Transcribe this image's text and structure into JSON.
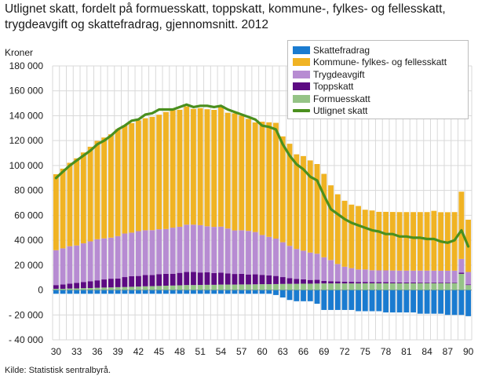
{
  "title_lines": [
    "Utlignet skatt, fordelt på formuesskatt, toppskatt, kommune-, fylkes- og fellesskatt,",
    "trygdeavgift og skattefradrag, gjennomsnitt. 2012"
  ],
  "source": "Kilde: Statistisk sentralbyrå.",
  "colors": {
    "skattefradrag": "#1a7bd0",
    "kommune": "#f0b323",
    "trygdeavgift": "#b78cd2",
    "toppskatt": "#5c0a82",
    "formuesskatt": "#95c386",
    "utlignet": "#4a8f1e",
    "grid": "#d9d9d9"
  },
  "chart_data": {
    "type": "bar",
    "stacked": true,
    "title": "Utlignet skatt, fordelt på formuesskatt, toppskatt, kommune-, fylkes- og fellesskatt, trygdeavgift og skattefradrag, gjennomsnitt. 2012",
    "ylabel": "Kroner",
    "xlabel": "",
    "ylim": [
      -40000,
      180000
    ],
    "yticks": [
      -40000,
      -20000,
      0,
      20000,
      40000,
      60000,
      80000,
      100000,
      120000,
      140000,
      160000,
      180000
    ],
    "ytick_labels": [
      "- 40 000",
      "- 20 000",
      "0",
      "20 000",
      "40 000",
      "60 000",
      "80 000",
      "100 000",
      "120 000",
      "140 000",
      "160 000",
      "180 000"
    ],
    "xtick_labels": [
      "30",
      "33",
      "36",
      "39",
      "42",
      "45",
      "48",
      "51",
      "54",
      "57",
      "60",
      "63",
      "66",
      "69",
      "72",
      "75",
      "78",
      "81",
      "84",
      "87",
      "90"
    ],
    "ages": [
      30,
      31,
      32,
      33,
      34,
      35,
      36,
      37,
      38,
      39,
      40,
      41,
      42,
      43,
      44,
      45,
      46,
      47,
      48,
      49,
      50,
      51,
      52,
      53,
      54,
      55,
      56,
      57,
      58,
      59,
      60,
      61,
      62,
      63,
      64,
      65,
      66,
      67,
      68,
      69,
      70,
      71,
      72,
      73,
      74,
      75,
      76,
      77,
      78,
      79,
      80,
      81,
      82,
      83,
      84,
      85,
      86,
      87,
      88,
      89,
      90
    ],
    "grid": true,
    "legend_position": "top-right",
    "legend": [
      "Skattefradrag",
      "Kommune- fylkes- og fellesskatt",
      "Trygdeavgift",
      "Toppskatt",
      "Formuesskatt",
      "Utlignet skatt"
    ],
    "series": [
      {
        "name": "Skattefradrag",
        "key": "skattefradrag",
        "kind": "bar",
        "values": [
          -3000,
          -3000,
          -3000,
          -3000,
          -3000,
          -3000,
          -3000,
          -3000,
          -3000,
          -3000,
          -3000,
          -3000,
          -3000,
          -3000,
          -3000,
          -3000,
          -3000,
          -3000,
          -3000,
          -3000,
          -3000,
          -3000,
          -3000,
          -3000,
          -3000,
          -3000,
          -3000,
          -3000,
          -3000,
          -3000,
          -3000,
          -3000,
          -4000,
          -6000,
          -8000,
          -9000,
          -9000,
          -9000,
          -11000,
          -16000,
          -16000,
          -16000,
          -16000,
          -16000,
          -17000,
          -17000,
          -17000,
          -17000,
          -18000,
          -18000,
          -18000,
          -18000,
          -18000,
          -19000,
          -19000,
          -19000,
          -19000,
          -20000,
          -20000,
          -20000,
          -21000
        ]
      },
      {
        "name": "Formuesskatt",
        "key": "formuesskatt",
        "kind": "bar",
        "values": [
          1000,
          1000,
          1200,
          1300,
          1500,
          1600,
          1800,
          2000,
          2100,
          2300,
          2400,
          2600,
          2800,
          3000,
          3100,
          3300,
          3500,
          3600,
          3800,
          4000,
          4000,
          4100,
          4200,
          4200,
          4400,
          4400,
          4400,
          4500,
          4500,
          4600,
          4700,
          4700,
          4800,
          4900,
          5000,
          5000,
          5100,
          5100,
          5200,
          5300,
          5300,
          5300,
          5300,
          5300,
          5300,
          5400,
          5400,
          5400,
          5400,
          5400,
          5400,
          5400,
          5400,
          5500,
          5500,
          5500,
          5500,
          5500,
          5600,
          13000,
          4000
        ]
      },
      {
        "name": "Toppskatt",
        "key": "toppskatt",
        "kind": "bar",
        "values": [
          3000,
          3500,
          4000,
          4500,
          5000,
          5500,
          6000,
          6500,
          7000,
          7000,
          8000,
          8500,
          8500,
          9000,
          9000,
          9500,
          9500,
          9500,
          10000,
          10500,
          10500,
          10000,
          10000,
          9500,
          9500,
          9000,
          8500,
          8500,
          8000,
          8000,
          7500,
          7000,
          6500,
          5500,
          4500,
          4000,
          3500,
          3000,
          3000,
          2000,
          1800,
          1600,
          1400,
          1300,
          1200,
          1100,
          1000,
          900,
          900,
          800,
          700,
          700,
          700,
          600,
          600,
          600,
          500,
          500,
          500,
          1000,
          500
        ]
      },
      {
        "name": "Trygdeavgift",
        "key": "trygdeavgift",
        "kind": "bar",
        "values": [
          28000,
          29000,
          30000,
          30000,
          31000,
          32000,
          33000,
          33000,
          33000,
          34000,
          35000,
          35000,
          36000,
          36000,
          36000,
          36000,
          36000,
          37000,
          37000,
          38000,
          38000,
          38000,
          37000,
          37000,
          37000,
          36000,
          35000,
          35000,
          35000,
          34000,
          32000,
          31000,
          30000,
          28000,
          26000,
          24000,
          23000,
          22000,
          21000,
          19000,
          17000,
          14000,
          12000,
          11000,
          10000,
          10000,
          9500,
          9500,
          9500,
          9500,
          9500,
          9500,
          9500,
          9500,
          9500,
          9500,
          9500,
          9500,
          9500,
          11000,
          10000
        ]
      },
      {
        "name": "Kommune- fylkes- og fellesskatt",
        "key": "kommune",
        "kind": "bar",
        "values": [
          61000,
          64000,
          67000,
          70000,
          73000,
          76000,
          79000,
          81000,
          83000,
          86000,
          87000,
          88000,
          89000,
          90000,
          91000,
          92000,
          94000,
          95000,
          94000,
          95000,
          93000,
          94000,
          94000,
          94000,
          96000,
          93000,
          94000,
          92000,
          90000,
          88000,
          91000,
          92000,
          93000,
          85000,
          82000,
          76000,
          76000,
          74000,
          72000,
          67000,
          60000,
          56000,
          53000,
          51000,
          51000,
          48000,
          48000,
          47000,
          47000,
          47000,
          47000,
          47000,
          47000,
          47000,
          47000,
          48000,
          47000,
          47000,
          47000,
          54000,
          42000
        ]
      },
      {
        "name": "Utlignet skatt",
        "key": "utlignet",
        "kind": "line",
        "values": [
          90000,
          95000,
          100000,
          104000,
          108000,
          112000,
          117000,
          120000,
          124000,
          129000,
          132000,
          136000,
          137000,
          141000,
          142000,
          145000,
          145000,
          145000,
          147000,
          149000,
          147000,
          148000,
          148000,
          147000,
          148000,
          145000,
          143000,
          141000,
          139000,
          137000,
          132000,
          131000,
          129000,
          117000,
          108000,
          101000,
          97000,
          91000,
          88000,
          76000,
          65000,
          61000,
          57000,
          54000,
          52000,
          50000,
          48000,
          47000,
          45000,
          45000,
          43000,
          43000,
          42000,
          42000,
          41000,
          41000,
          39000,
          38000,
          40000,
          48000,
          35000
        ]
      }
    ]
  }
}
